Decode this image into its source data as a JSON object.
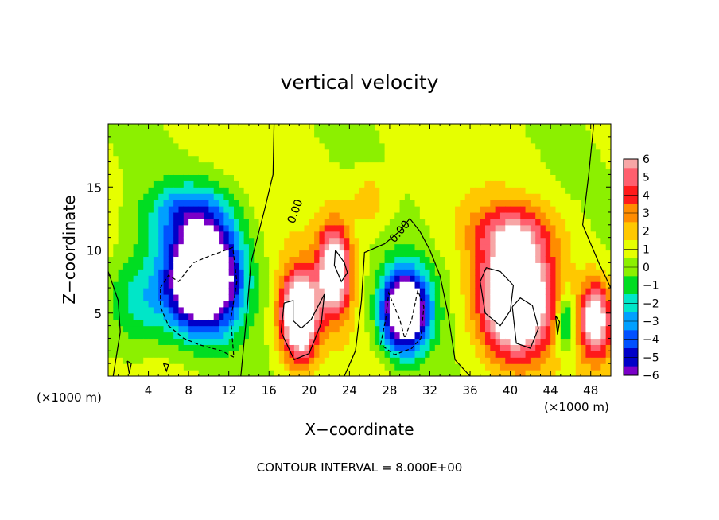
{
  "chart_data": {
    "type": "heatmap",
    "title": "vertical velocity",
    "xlabel": "X−coordinate",
    "ylabel": "Z−coordinate",
    "x_unit_left": "(×1000 m)",
    "x_unit_right": "(×1000 m)",
    "footer": "CONTOUR INTERVAL = 8.000E+00",
    "xlim": [
      0,
      50
    ],
    "ylim": [
      0,
      20
    ],
    "x_ticks": [
      4,
      8,
      12,
      16,
      20,
      24,
      28,
      32,
      36,
      40,
      44,
      48
    ],
    "y_ticks": [
      5,
      10,
      15
    ],
    "x_tick_labels": [
      "4",
      "8",
      "12",
      "16",
      "20",
      "24",
      "28",
      "32",
      "36",
      "40",
      "44",
      "48"
    ],
    "y_tick_labels": [
      "5",
      "10",
      "15"
    ],
    "colorbar": {
      "min": -6,
      "max": 6,
      "tick_labels": [
        "6",
        "5",
        "4",
        "3",
        "2",
        "1",
        "0",
        "−1",
        "−2",
        "−3",
        "−4",
        "−5",
        "−6"
      ]
    },
    "contour_labels": [
      "0.00",
      "0.00"
    ],
    "features": [
      {
        "kind": "downdraft",
        "x": 9,
        "z": 8,
        "peak": -6
      },
      {
        "kind": "updraft",
        "x": 19,
        "z": 5,
        "peak": 6
      },
      {
        "kind": "updraft",
        "x": 22.5,
        "z": 9,
        "peak": 5
      },
      {
        "kind": "downdraft",
        "x": 29.5,
        "z": 5,
        "peak": -6
      },
      {
        "kind": "updraft",
        "x": 40.5,
        "z": 6,
        "peak": 6
      },
      {
        "kind": "updraft",
        "x": 48.5,
        "z": 4.5,
        "peak": 5
      }
    ]
  }
}
